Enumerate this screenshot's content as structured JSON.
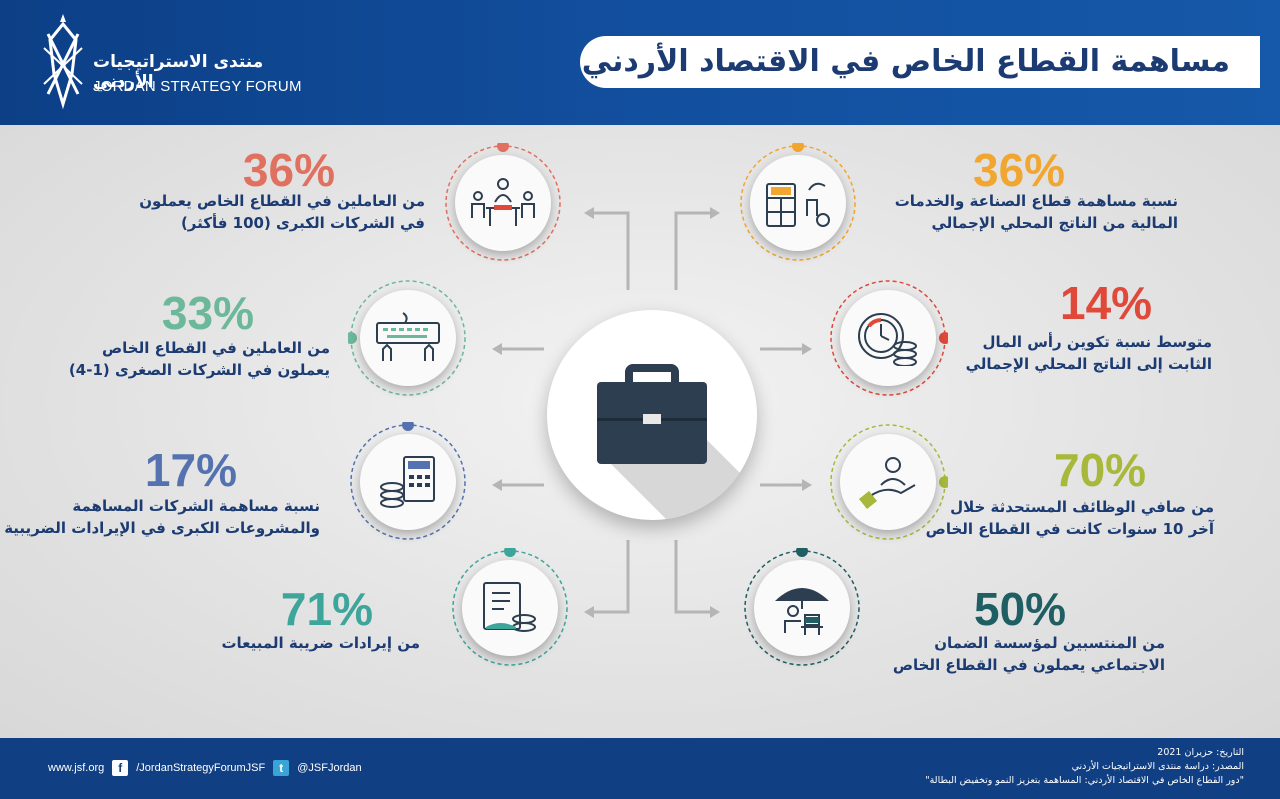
{
  "header": {
    "title": "مساهمة القطاع الخاص في الاقتصاد الأردني",
    "logo_ar": "منتدى الاستراتيجيات الأردني",
    "logo_en": "JORDAN STRATEGY FORUM"
  },
  "center": {
    "icon": "briefcase-icon"
  },
  "left_items": [
    {
      "percent": "36%",
      "line1": "من العاملين في القطاع الخاص يعملون",
      "line2": "في الشركات الكبرى (100 فأكثر)",
      "color": "#e0705f",
      "icon": "meeting-icon"
    },
    {
      "percent": "33%",
      "line1": "من العاملين في القطاع الخاص",
      "line2": "يعملون في الشركات الصغرى (1-4)",
      "color": "#6cb89a",
      "icon": "keyboard-hands-icon"
    },
    {
      "percent": "17%",
      "line1": "نسبة مساهمة الشركات المساهمة",
      "line2": "والمشروعات الكبرى في الإيرادات الضريبية",
      "color": "#5572b0",
      "icon": "calculator-coins-icon"
    },
    {
      "percent": "71%",
      "line1": "من إيرادات ضريبة المبيعات",
      "line2": "",
      "color": "#3ea59b",
      "icon": "document-coins-icon"
    }
  ],
  "right_items": [
    {
      "percent": "36%",
      "line1": "نسبة مساهمة قطاع الصناعة والخدمات",
      "line2": "المالية من الناتج المحلي الإجمالي",
      "color": "#f0a630",
      "icon": "calculator-factory-icon"
    },
    {
      "percent": "14%",
      "line1": "متوسط نسبة تكوين رأس المال",
      "line2": "الثابت إلى الناتج المحلي الإجمالي",
      "color": "#e0483a",
      "icon": "clock-coins-icon"
    },
    {
      "percent": "70%",
      "line1": "من صافي الوظائف المستحدثة خلال",
      "line2": "آخر 10 سنوات كانت في القطاع الخاص",
      "color": "#a8b83a",
      "icon": "hand-person-icon"
    },
    {
      "percent": "50%",
      "line1": "من المنتسبين لمؤسسة الضمان",
      "line2": "الاجتماعي يعملون في القطاع الخاص",
      "color": "#1f5e63",
      "icon": "umbrella-worker-icon"
    }
  ],
  "footer": {
    "website": "www.jsf.org",
    "facebook": "/JordanStrategyForumJSF",
    "twitter": "@JSFJordan",
    "date": "التاريخ: حزيران 2021",
    "source1": "المصدر: دراسة منتدى الاستراتيجيات الأردني",
    "source2": "\"دور القطاع الخاص في الاقتصاد الأردني: المساهمة بتعزيز النمو وتخفيض البطالة\""
  }
}
